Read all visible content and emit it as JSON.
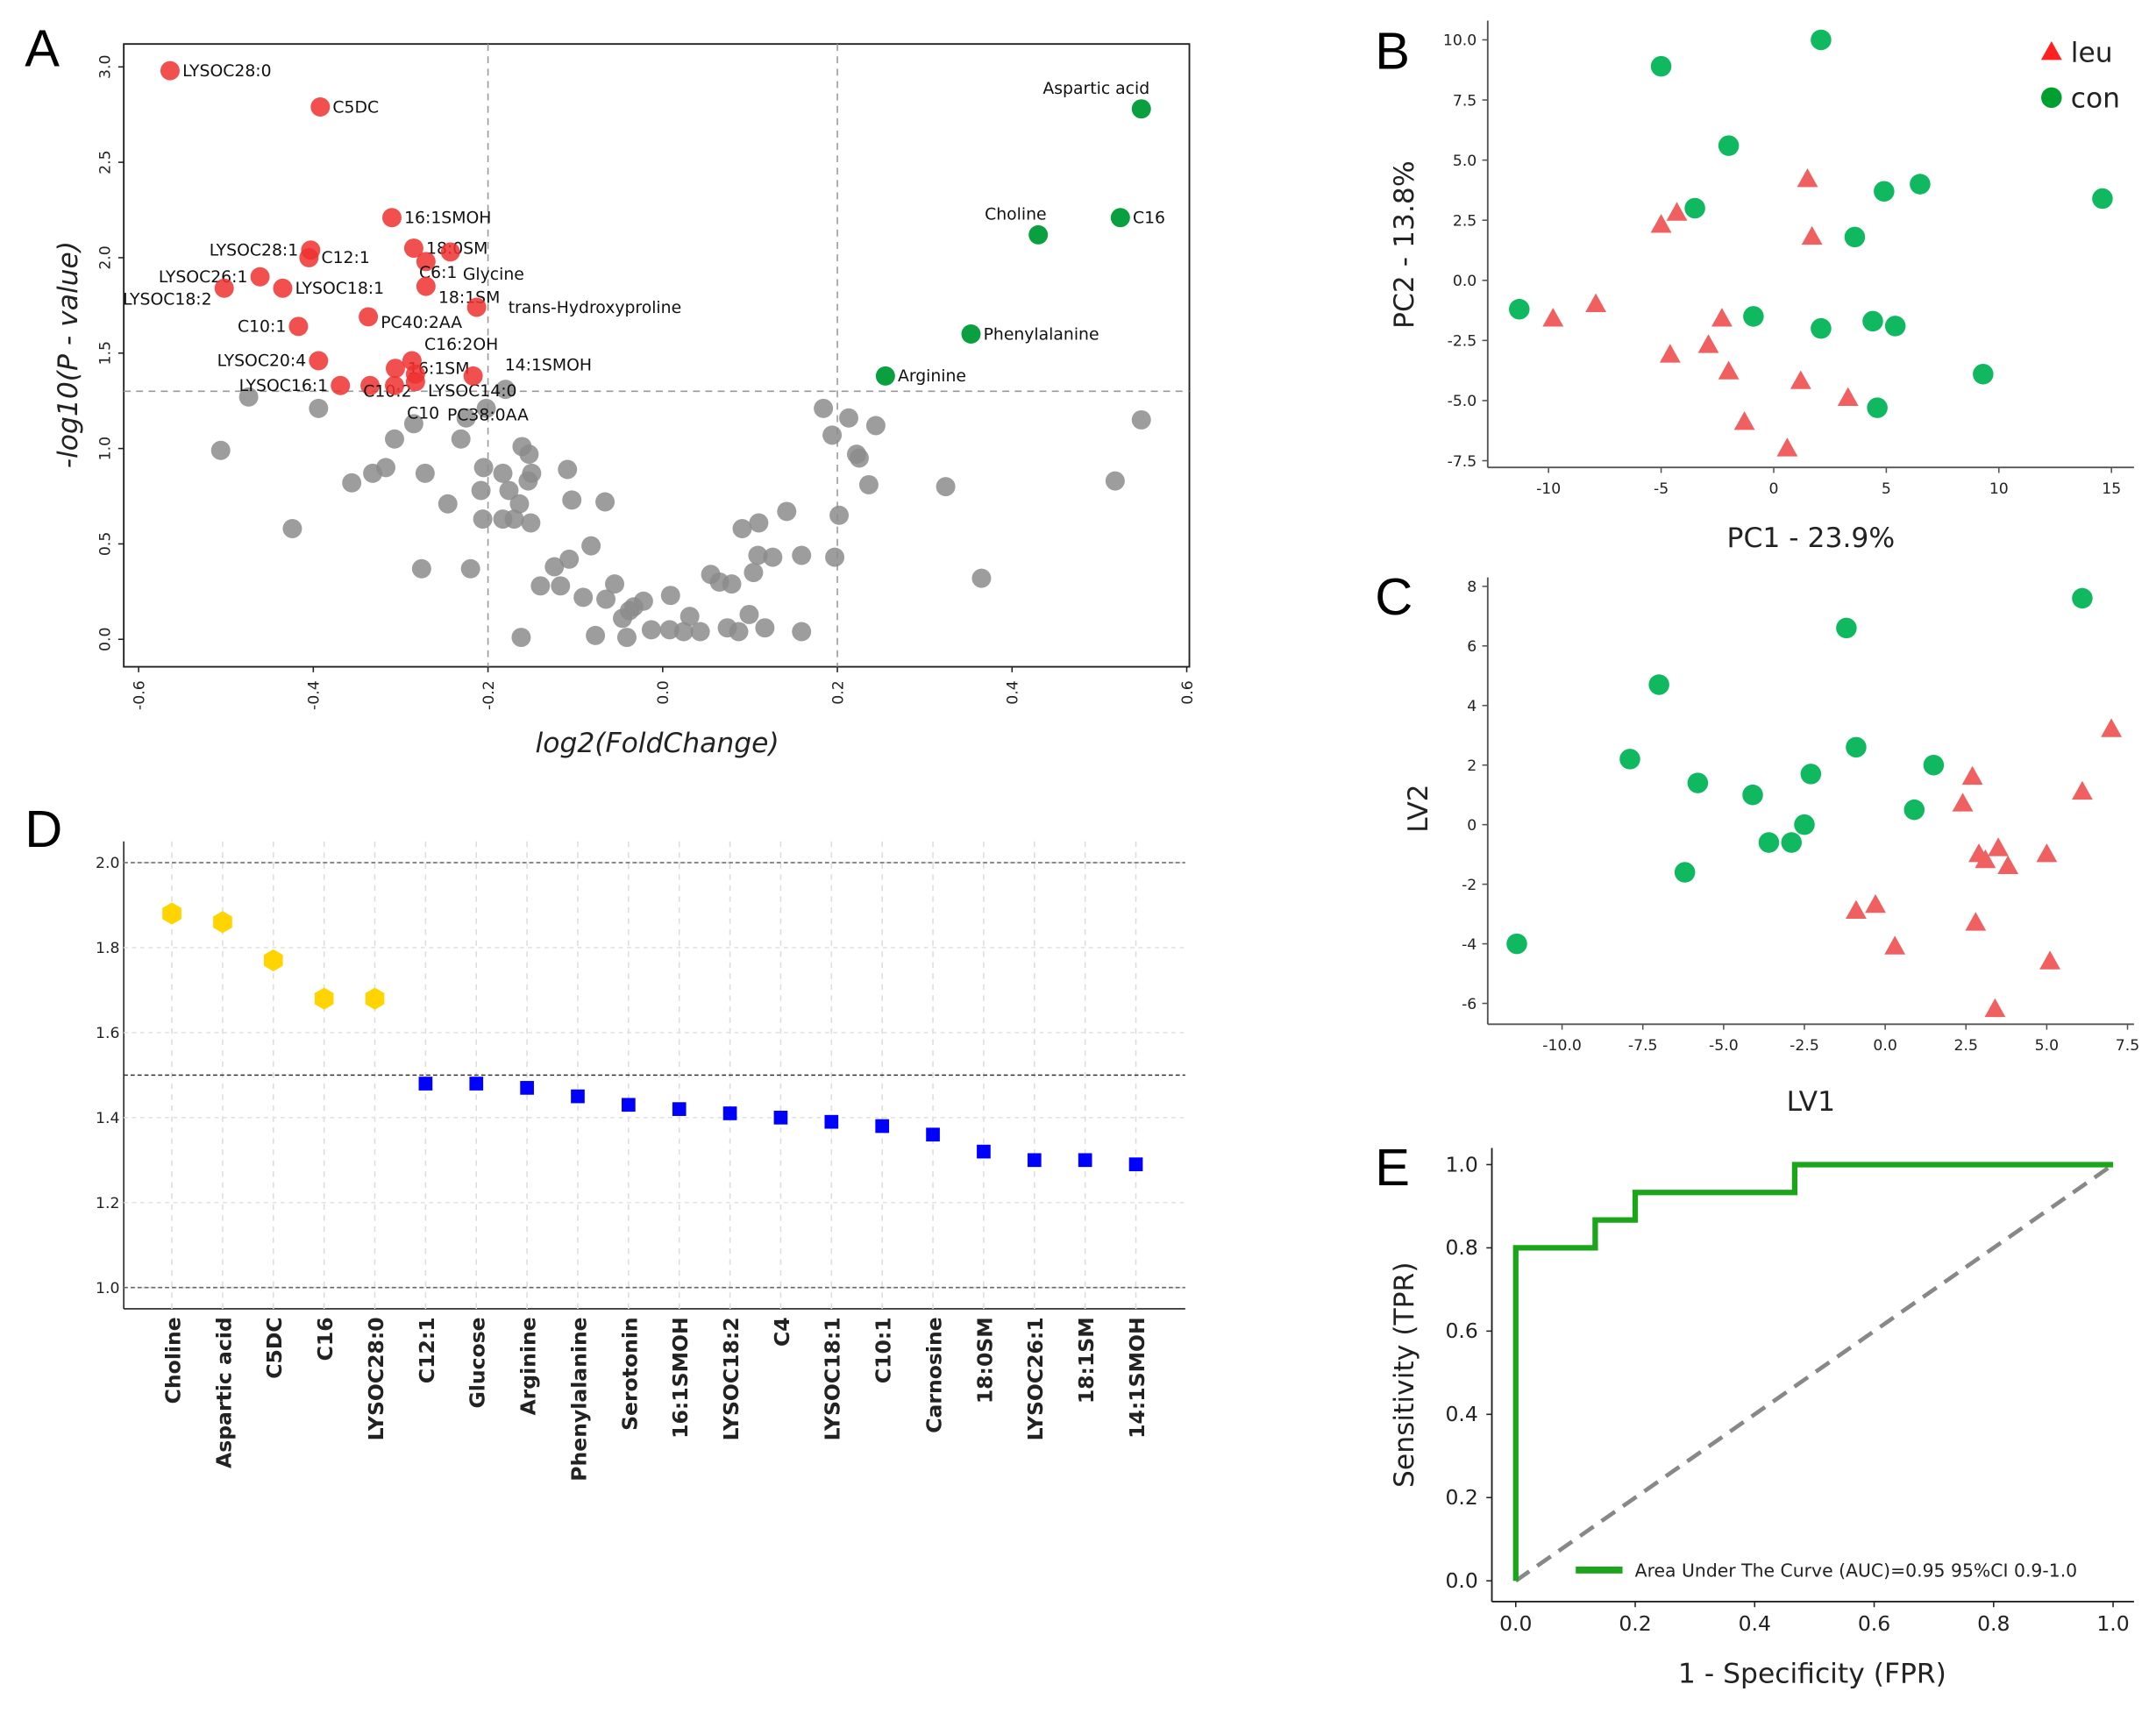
{
  "colors": {
    "red": "#f03030",
    "green": "#0aa040",
    "gray": "#8c8c8c",
    "tri": "#f06060",
    "circ": "#10b860",
    "gold": "#ffd400",
    "blue": "#0000ff",
    "roc": "#1aa51a"
  },
  "chart_data": [
    {
      "panel": "A",
      "type": "scatter",
      "xlabel": "log2(FoldChange)",
      "ylabel": "-log10(P - value)",
      "xlim": [
        -0.617,
        0.603
      ],
      "ylim": [
        -0.144,
        3.12
      ],
      "xticks": [
        -0.6,
        -0.4,
        -0.2,
        0.0,
        0.2,
        0.4,
        0.6
      ],
      "yticks": [
        0.0,
        0.5,
        1.0,
        1.5,
        2.0,
        2.5,
        3.0
      ],
      "vlines": [
        -0.2,
        0.2
      ],
      "hlines": [
        1.3
      ],
      "labeled_points": [
        {
          "name": "LYSOC28:0",
          "x": -0.564,
          "y": 2.98,
          "group": "down"
        },
        {
          "name": "C5DC",
          "x": -0.392,
          "y": 2.79,
          "group": "down"
        },
        {
          "name": "16:1SMOH",
          "x": -0.31,
          "y": 2.21,
          "group": "down"
        },
        {
          "name": "18:0SM",
          "x": -0.285,
          "y": 2.05,
          "group": "down"
        },
        {
          "name": "Glycine",
          "x": -0.243,
          "y": 2.03,
          "group": "down"
        },
        {
          "name": "C6:1",
          "x": -0.271,
          "y": 1.98,
          "group": "down"
        },
        {
          "name": "LYSOC28:1",
          "x": -0.403,
          "y": 2.04,
          "group": "down"
        },
        {
          "name": "C12:1",
          "x": -0.405,
          "y": 2.0,
          "group": "down"
        },
        {
          "name": "LYSOC26:1",
          "x": -0.461,
          "y": 1.9,
          "group": "down"
        },
        {
          "name": "LYSOC18:1",
          "x": -0.435,
          "y": 1.84,
          "group": "down"
        },
        {
          "name": "LYSOC18:2",
          "x": -0.502,
          "y": 1.84,
          "group": "down"
        },
        {
          "name": "18:1SM",
          "x": -0.271,
          "y": 1.85,
          "group": "down"
        },
        {
          "name": "trans-Hydroxyproline",
          "x": -0.213,
          "y": 1.74,
          "group": "down"
        },
        {
          "name": "PC40:2AA",
          "x": -0.337,
          "y": 1.69,
          "group": "down"
        },
        {
          "name": "C10:1",
          "x": -0.417,
          "y": 1.64,
          "group": "down"
        },
        {
          "name": "LYSOC20:4",
          "x": -0.394,
          "y": 1.46,
          "group": "down"
        },
        {
          "name": "16:1SM",
          "x": -0.306,
          "y": 1.42,
          "group": "down"
        },
        {
          "name": "C16:2OH",
          "x": -0.287,
          "y": 1.46,
          "group": "down"
        },
        {
          "name": "LYSOC14:0",
          "x": -0.283,
          "y": 1.39,
          "group": "down"
        },
        {
          "name": "14:1SMOH",
          "x": -0.217,
          "y": 1.38,
          "group": "down"
        },
        {
          "name": "LYSOC16:1",
          "x": -0.369,
          "y": 1.33,
          "group": "down"
        },
        {
          "name": "C10:2",
          "x": -0.335,
          "y": 1.33,
          "group": "down"
        },
        {
          "name": "C10",
          "x": -0.307,
          "y": 1.33,
          "group": "down"
        },
        {
          "name": "PC38:0AA",
          "x": -0.283,
          "y": 1.35,
          "group": "down"
        },
        {
          "name": "Aspartic acid",
          "x": 0.548,
          "y": 2.78,
          "group": "up"
        },
        {
          "name": "C16",
          "x": 0.524,
          "y": 2.21,
          "group": "up"
        },
        {
          "name": "Choline",
          "x": 0.43,
          "y": 2.12,
          "group": "up"
        },
        {
          "name": "Phenylalanine",
          "x": 0.353,
          "y": 1.6,
          "group": "up"
        },
        {
          "name": "Arginine",
          "x": 0.255,
          "y": 1.38,
          "group": "up"
        }
      ],
      "ns_points": [
        [
          -0.474,
          1.27
        ],
        [
          -0.394,
          1.21
        ],
        [
          -0.506,
          0.99
        ],
        [
          -0.424,
          0.58
        ],
        [
          -0.356,
          0.82
        ],
        [
          -0.332,
          0.87
        ],
        [
          -0.317,
          0.9
        ],
        [
          -0.307,
          1.05
        ],
        [
          -0.285,
          1.13
        ],
        [
          -0.272,
          0.87
        ],
        [
          -0.276,
          0.37
        ],
        [
          -0.231,
          1.05
        ],
        [
          -0.225,
          1.16
        ],
        [
          -0.246,
          0.71
        ],
        [
          -0.22,
          0.37
        ],
        [
          -0.205,
          0.9
        ],
        [
          -0.208,
          0.78
        ],
        [
          -0.206,
          0.63
        ],
        [
          -0.183,
          0.87
        ],
        [
          -0.176,
          0.78
        ],
        [
          -0.183,
          0.63
        ],
        [
          -0.17,
          0.63
        ],
        [
          -0.161,
          1.01
        ],
        [
          -0.153,
          0.97
        ],
        [
          -0.154,
          0.83
        ],
        [
          -0.15,
          0.87
        ],
        [
          -0.164,
          0.71
        ],
        [
          -0.151,
          0.61
        ],
        [
          -0.162,
          0.01
        ],
        [
          -0.14,
          0.28
        ],
        [
          -0.124,
          0.38
        ],
        [
          -0.117,
          0.28
        ],
        [
          -0.107,
          0.42
        ],
        [
          -0.109,
          0.89
        ],
        [
          -0.104,
          0.73
        ],
        [
          -0.091,
          0.22
        ],
        [
          -0.082,
          0.49
        ],
        [
          -0.077,
          0.02
        ],
        [
          -0.066,
          0.72
        ],
        [
          -0.065,
          0.21
        ],
        [
          -0.055,
          0.29
        ],
        [
          -0.046,
          0.11
        ],
        [
          -0.041,
          0.01
        ],
        [
          -0.038,
          0.15
        ],
        [
          -0.033,
          0.17
        ],
        [
          -0.022,
          0.2
        ],
        [
          -0.013,
          0.05
        ],
        [
          0.008,
          0.05
        ],
        [
          0.009,
          0.23
        ],
        [
          0.024,
          0.04
        ],
        [
          0.031,
          0.12
        ],
        [
          0.043,
          0.04
        ],
        [
          0.055,
          0.34
        ],
        [
          0.065,
          0.3
        ],
        [
          0.074,
          0.06
        ],
        [
          0.087,
          0.04
        ],
        [
          0.079,
          0.29
        ],
        [
          0.091,
          0.58
        ],
        [
          0.099,
          0.13
        ],
        [
          0.104,
          0.35
        ],
        [
          0.109,
          0.44
        ],
        [
          0.11,
          0.61
        ],
        [
          0.117,
          0.06
        ],
        [
          0.126,
          0.43
        ],
        [
          0.142,
          0.67
        ],
        [
          0.159,
          0.04
        ],
        [
          0.159,
          0.44
        ],
        [
          0.194,
          1.07
        ],
        [
          0.197,
          0.43
        ],
        [
          0.202,
          0.65
        ],
        [
          0.213,
          1.16
        ],
        [
          0.222,
          0.97
        ],
        [
          0.225,
          0.95
        ],
        [
          0.236,
          0.81
        ],
        [
          0.244,
          1.12
        ],
        [
          0.324,
          0.8
        ],
        [
          0.365,
          0.32
        ],
        [
          0.518,
          0.83
        ],
        [
          0.548,
          1.15
        ],
        [
          0.184,
          1.21
        ],
        [
          -0.18,
          1.31
        ],
        [
          -0.202,
          1.21
        ]
      ]
    },
    {
      "panel": "B",
      "type": "scatter",
      "xlabel": "PC1 - 23.9%",
      "ylabel": "PC2 - 13.8%",
      "xlim": [
        -12.7,
        16.0
      ],
      "ylim": [
        -7.78,
        10.8
      ],
      "xticks": [
        -10,
        -5,
        0,
        5,
        10,
        15
      ],
      "ytick_labels": [
        "10.0",
        "7.5",
        "5.0",
        "2.5",
        "0.0",
        "-2.5",
        "-5.0",
        "-7.5"
      ],
      "yticks": [
        10,
        7.5,
        5,
        2.5,
        0,
        -2.5,
        -5,
        -7.5
      ],
      "legend": [
        "leu",
        "con"
      ],
      "legend_position": "top-right",
      "series": [
        {
          "name": "leu",
          "marker": "triangle",
          "points": [
            [
              -9.8,
              -1.6
            ],
            [
              -7.9,
              -1.0
            ],
            [
              -5.0,
              2.3
            ],
            [
              -4.3,
              2.8
            ],
            [
              1.5,
              4.2
            ],
            [
              1.7,
              1.8
            ],
            [
              -2.3,
              -1.6
            ],
            [
              -2.9,
              -2.7
            ],
            [
              -4.6,
              -3.1
            ],
            [
              -2.0,
              -3.8
            ],
            [
              1.2,
              -4.2
            ],
            [
              3.3,
              -4.9
            ],
            [
              -1.3,
              -5.9
            ],
            [
              0.6,
              -7.0
            ]
          ]
        },
        {
          "name": "con",
          "marker": "circle",
          "points": [
            [
              -11.3,
              -1.2
            ],
            [
              -5.0,
              8.9
            ],
            [
              2.1,
              10.0
            ],
            [
              -2.0,
              5.6
            ],
            [
              -3.5,
              3.0
            ],
            [
              4.9,
              3.7
            ],
            [
              6.5,
              4.0
            ],
            [
              14.6,
              3.4
            ],
            [
              3.6,
              1.8
            ],
            [
              -0.9,
              -1.5
            ],
            [
              2.1,
              -2.0
            ],
            [
              4.4,
              -1.7
            ],
            [
              5.4,
              -1.9
            ],
            [
              9.3,
              -3.9
            ],
            [
              4.6,
              -5.3
            ]
          ]
        }
      ]
    },
    {
      "panel": "C",
      "type": "scatter",
      "xlabel": "LV1",
      "ylabel": "LV2",
      "xlim": [
        -12.3,
        7.7
      ],
      "ylim": [
        -6.7,
        8.3
      ],
      "xticks": [
        -10.0,
        -7.5,
        -5.0,
        -2.5,
        0.0,
        2.5,
        5.0,
        7.5
      ],
      "yticks": [
        -6,
        -4,
        -2,
        0,
        2,
        4,
        6,
        8
      ],
      "series": [
        {
          "marker": "circle",
          "points": [
            [
              -11.4,
              -4.0
            ],
            [
              -7.0,
              4.7
            ],
            [
              -7.9,
              2.2
            ],
            [
              -5.8,
              1.4
            ],
            [
              -4.1,
              1.0
            ],
            [
              -6.2,
              -1.6
            ],
            [
              -3.6,
              -0.6
            ],
            [
              -2.9,
              -0.6
            ],
            [
              -2.5,
              0.0
            ],
            [
              -2.3,
              1.7
            ],
            [
              -1.2,
              6.6
            ],
            [
              -0.9,
              2.6
            ],
            [
              0.9,
              0.5
            ],
            [
              1.5,
              2.0
            ],
            [
              6.1,
              7.6
            ]
          ]
        },
        {
          "marker": "triangle",
          "points": [
            [
              7.0,
              3.2
            ],
            [
              6.1,
              1.1
            ],
            [
              2.7,
              1.6
            ],
            [
              2.4,
              0.7
            ],
            [
              2.9,
              -1.0
            ],
            [
              3.1,
              -1.2
            ],
            [
              3.5,
              -0.8
            ],
            [
              3.8,
              -1.4
            ],
            [
              5.0,
              -1.0
            ],
            [
              2.8,
              -3.3
            ],
            [
              -0.3,
              -2.7
            ],
            [
              -0.9,
              -2.9
            ],
            [
              0.3,
              -4.1
            ],
            [
              5.1,
              -4.6
            ],
            [
              3.4,
              -6.2
            ]
          ]
        }
      ]
    },
    {
      "panel": "D",
      "type": "scatter",
      "ylim": [
        0.95,
        2.05
      ],
      "yticks": [
        1.0,
        1.2,
        1.4,
        1.6,
        1.8,
        2.0
      ],
      "hlines": [
        1.0,
        1.5,
        2.0
      ],
      "categories": [
        "Choline",
        "Aspartic acid",
        "C5DC",
        "C16",
        "LYSOC28:0",
        "C12:1",
        "Glucose",
        "Arginine",
        "Phenylalanine",
        "Serotonin",
        "16:1SMOH",
        "LYSOC18:2",
        "C4",
        "LYSOC18:1",
        "C10:1",
        "Carnosine",
        "18:0SM",
        "LYSOC26:1",
        "18:1SM",
        "14:1SMOH"
      ],
      "values": [
        1.88,
        1.86,
        1.77,
        1.68,
        1.68,
        1.48,
        1.48,
        1.47,
        1.45,
        1.43,
        1.42,
        1.41,
        1.4,
        1.39,
        1.38,
        1.36,
        1.32,
        1.3,
        1.3,
        1.29
      ],
      "markers": [
        "hexagon",
        "hexagon",
        "hexagon",
        "hexagon",
        "hexagon",
        "square",
        "square",
        "square",
        "square",
        "square",
        "square",
        "square",
        "square",
        "square",
        "square",
        "square",
        "square",
        "square",
        "square",
        "square"
      ]
    },
    {
      "panel": "E",
      "type": "line",
      "xlabel": "1 - Specificity (FPR)",
      "ylabel": "Sensitivity (TPR)",
      "xlim": [
        -0.04,
        1.035
      ],
      "ylim": [
        -0.05,
        1.04
      ],
      "xticks": [
        0.0,
        0.2,
        0.4,
        0.6,
        0.8,
        1.0
      ],
      "yticks": [
        0.0,
        0.2,
        0.4,
        0.6,
        0.8,
        1.0
      ],
      "legend": "Area Under The Curve (AUC)=0.95 95%CI 0.9-1.0",
      "legend_position": "bottom-right",
      "roc": {
        "x": [
          0,
          0,
          0.133,
          0.133,
          0.2,
          0.2,
          0.467,
          0.467,
          1.0
        ],
        "y": [
          0,
          0.8,
          0.8,
          0.867,
          0.867,
          0.933,
          0.933,
          1.0,
          1.0
        ]
      },
      "diagonal": {
        "x": [
          0,
          1
        ],
        "y": [
          0,
          1
        ]
      }
    }
  ]
}
